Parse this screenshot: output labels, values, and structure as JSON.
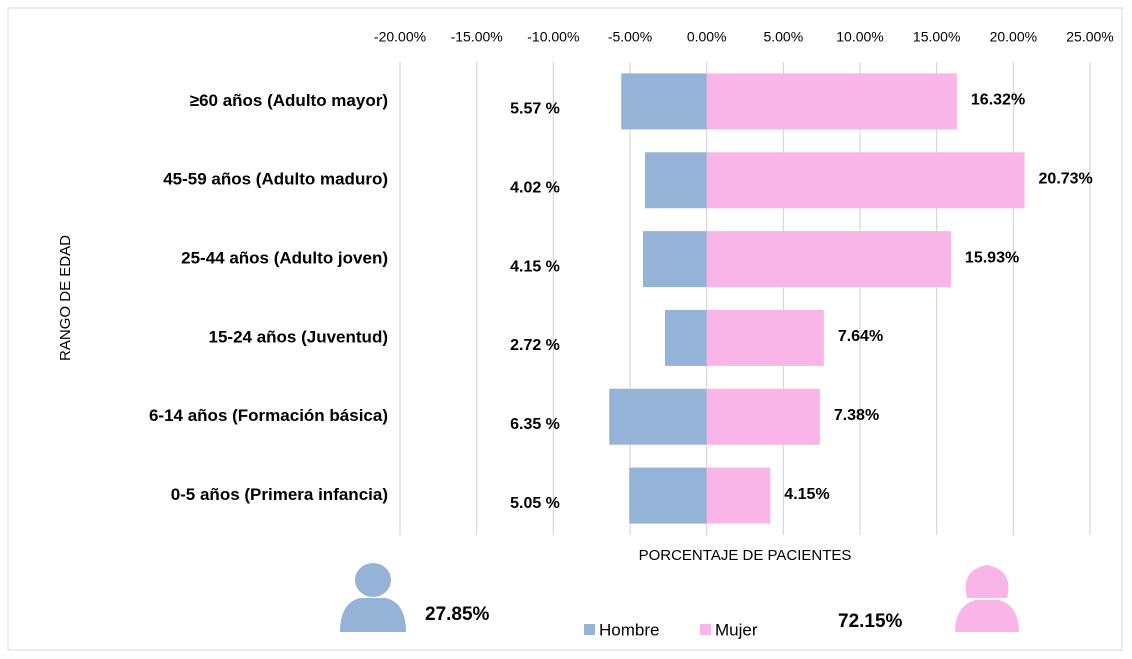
{
  "chart_data": {
    "type": "bar",
    "orientation": "horizontal",
    "categories": [
      "≥60 años (Adulto mayor)",
      "45-59 años (Adulto maduro)",
      "25-44 años (Adulto joven)",
      "15-24 años (Juventud)",
      "6-14 años (Formación básica)",
      "0-5 años (Primera infancia)"
    ],
    "series": [
      {
        "name": "Hombre",
        "color": "#95b3d7",
        "values": [
          -5.57,
          -4.02,
          -4.15,
          -2.72,
          -6.35,
          -5.05
        ],
        "value_labels": [
          "5.57 %",
          "4.02 %",
          "4.15 %",
          "2.72 %",
          "6.35 %",
          "5.05 %"
        ]
      },
      {
        "name": "Mujer",
        "color": "#f9b4e8",
        "values": [
          16.32,
          20.73,
          15.93,
          7.64,
          7.38,
          4.15
        ],
        "value_labels": [
          "16.32%",
          "20.73%",
          "15.93%",
          "7.64%",
          "7.38%",
          "4.15%"
        ]
      }
    ],
    "xlim": [
      -20,
      25
    ],
    "xticks": [
      {
        "value": -20,
        "label": "-20.00%"
      },
      {
        "value": -15,
        "label": "-15.00%"
      },
      {
        "value": -10,
        "label": "-10.00%"
      },
      {
        "value": -5,
        "label": "-5.00%"
      },
      {
        "value": 0,
        "label": "0.00%"
      },
      {
        "value": 5,
        "label": "5.00%"
      },
      {
        "value": 10,
        "label": "10.00%"
      },
      {
        "value": 15,
        "label": "15.00%"
      },
      {
        "value": 20,
        "label": "20.00%"
      },
      {
        "value": 25,
        "label": "25.00%"
      }
    ],
    "grid": true,
    "xlabel": "PORCENTAJE DE PACIENTES",
    "ylabel": "RANGO DE EDAD",
    "annotations": [
      "27.85%",
      "72.15%"
    ]
  }
}
